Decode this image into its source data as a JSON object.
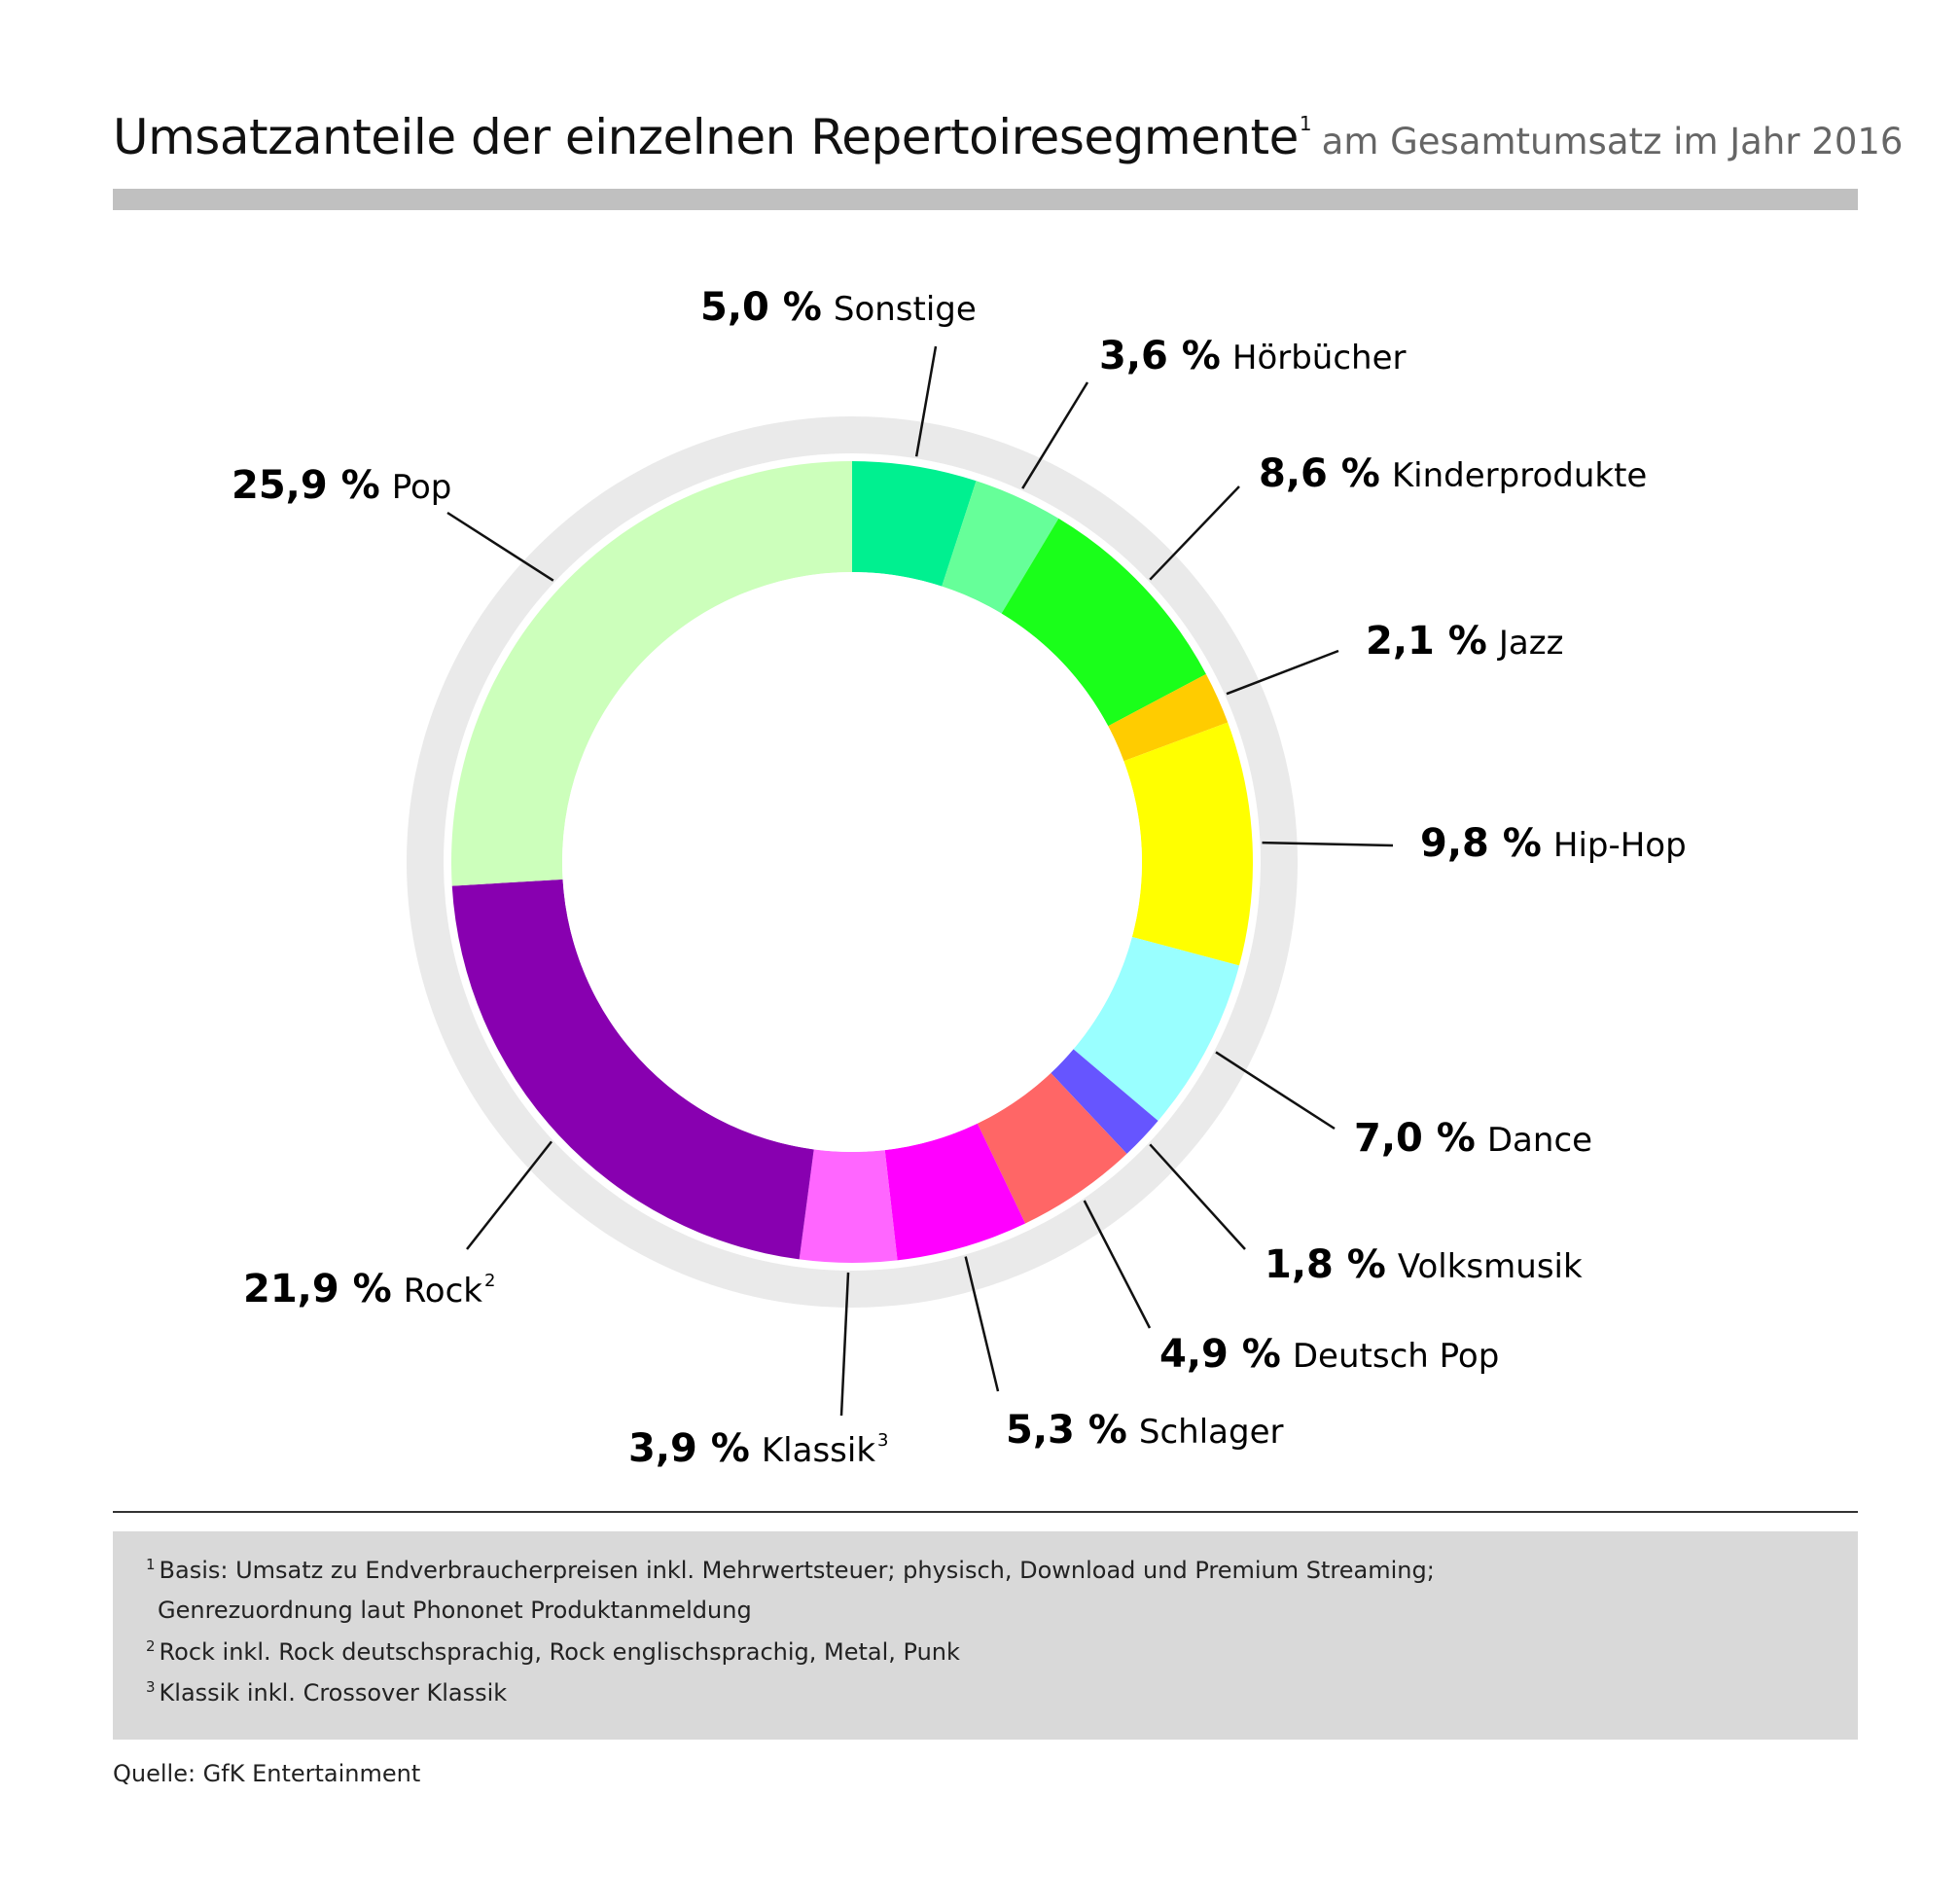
{
  "title": {
    "main": "Umsatzanteile der einzelnen Repertoiresegmente",
    "footnote_ref": "1",
    "sub": "am Gesamtumsatz im Jahr 2016"
  },
  "chart_data": {
    "type": "pie",
    "variant": "donut",
    "title": "Umsatzanteile der einzelnen Repertoiresegmente am Gesamtumsatz im Jahr 2016",
    "unit": "%",
    "slices": [
      {
        "label": "Sonstige",
        "value": 5.0,
        "display": "5,0 %",
        "sup": "",
        "color": "#00f090"
      },
      {
        "label": "Hörbücher",
        "value": 3.6,
        "display": "3,6 %",
        "sup": "",
        "color": "#66ff99"
      },
      {
        "label": "Kinderprodukte",
        "value": 8.6,
        "display": "8,6 %",
        "sup": "",
        "color": "#1aff1a"
      },
      {
        "label": "Jazz",
        "value": 2.1,
        "display": "2,1 %",
        "sup": "",
        "color": "#ffcc00"
      },
      {
        "label": "Hip-Hop",
        "value": 9.8,
        "display": "9,8 %",
        "sup": "",
        "color": "#ffff00"
      },
      {
        "label": "Dance",
        "value": 7.0,
        "display": "7,0 %",
        "sup": "",
        "color": "#99ffff"
      },
      {
        "label": "Volksmusik",
        "value": 1.8,
        "display": "1,8 %",
        "sup": "",
        "color": "#6655ff"
      },
      {
        "label": "Deutsch Pop",
        "value": 4.9,
        "display": "4,9 %",
        "sup": "",
        "color": "#ff6666"
      },
      {
        "label": "Schlager",
        "value": 5.3,
        "display": "5,3 %",
        "sup": "",
        "color": "#ff00ff"
      },
      {
        "label": "Klassik",
        "value": 3.9,
        "display": "3,9 %",
        "sup": "3",
        "color": "#ff66ff"
      },
      {
        "label": "Rock",
        "value": 21.9,
        "display": "21,9 %",
        "sup": "2",
        "color": "#8800b0"
      },
      {
        "label": "Pop",
        "value": 25.9,
        "display": "25,9 %",
        "sup": "",
        "color": "#ccffbb"
      }
    ]
  },
  "footnotes": [
    {
      "mark": "1",
      "text": "Basis: Umsatz zu Endverbraucherpreisen inkl. Mehrwertsteuer; physisch, Download und Premium Streaming;"
    },
    {
      "mark": "",
      "text": "Genrezuordnung laut Phononet Produktanmeldung"
    },
    {
      "mark": "2",
      "text": "Rock inkl. Rock deutschsprachig, Rock englischsprachig, Metal, Punk"
    },
    {
      "mark": "3",
      "text": "Klassik inkl. Crossover Klassik"
    }
  ],
  "source": "Quelle: GfK Entertainment"
}
